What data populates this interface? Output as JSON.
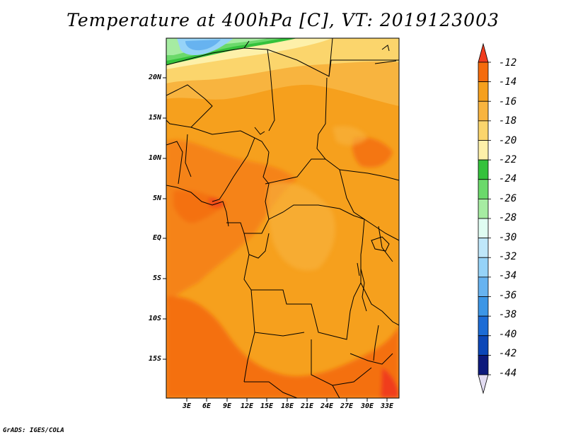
{
  "title": "Temperature at 400hPa [C], VT: 2019123003",
  "credit": "GrADS: IGES/COLA",
  "lat_labels": [
    "20N",
    "15N",
    "10N",
    "5N",
    "EQ",
    "5S",
    "10S",
    "15S"
  ],
  "lon_labels": [
    "3E",
    "6E",
    "9E",
    "12E",
    "15E",
    "18E",
    "21E",
    "24E",
    "27E",
    "30E",
    "33E"
  ],
  "colorbar": {
    "labels": [
      "-12",
      "-14",
      "-16",
      "-18",
      "-20",
      "-22",
      "-24",
      "-26",
      "-28",
      "-30",
      "-32",
      "-34",
      "-36",
      "-38",
      "-40",
      "-42",
      "-44"
    ],
    "colors": [
      "#f03c1e",
      "#f46b0c",
      "#f6a01d",
      "#f8b43f",
      "#fbd56c",
      "#fdf0a9",
      "#34c23c",
      "#6bd96b",
      "#a6eca2",
      "#e0fdf2",
      "#bfe7fa",
      "#96d3f8",
      "#67b3f0",
      "#3c96e6",
      "#1c6cd6",
      "#0c47b8",
      "#0d1a7c",
      "#e2dcf2"
    ]
  }
}
